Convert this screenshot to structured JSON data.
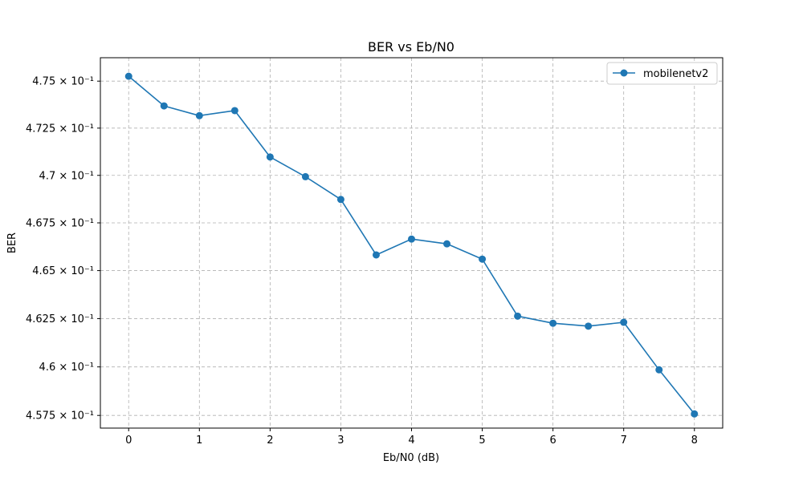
{
  "chart_data": {
    "type": "line",
    "title": "BER vs Eb/N0",
    "xlabel": "Eb/N0 (dB)",
    "ylabel": "BER",
    "xlim": [
      -0.4,
      8.4
    ],
    "ylim": [
      4.5685,
      4.7625
    ],
    "y_scale": "log",
    "grid": true,
    "grid_style": "dashed",
    "legend_position": "top-right",
    "x_ticks": [
      0,
      1,
      2,
      3,
      4,
      5,
      6,
      7,
      8
    ],
    "x_tick_labels": [
      "0",
      "1",
      "2",
      "3",
      "4",
      "5",
      "6",
      "7",
      "8"
    ],
    "y_ticks": [
      4.575,
      4.6,
      4.625,
      4.65,
      4.675,
      4.7,
      4.725,
      4.75
    ],
    "y_tick_labels": [
      "4.575 × 10⁻¹",
      "4.6 × 10⁻¹",
      "4.625 × 10⁻¹",
      "4.65 × 10⁻¹",
      "4.675 × 10⁻¹",
      "4.7 × 10⁻¹",
      "4.725 × 10⁻¹",
      "4.75 × 10⁻¹"
    ],
    "series": [
      {
        "name": "mobilenetv2",
        "color": "#1f77b4",
        "marker": "circle",
        "x": [
          0,
          0.5,
          1,
          1.5,
          2,
          2.5,
          3,
          3.5,
          4,
          4.5,
          5,
          5.5,
          6,
          6.5,
          7,
          7.5,
          8
        ],
        "y": [
          4.7526,
          4.7368,
          4.7316,
          4.7343,
          4.7097,
          4.6993,
          4.6873,
          4.6582,
          4.6665,
          4.664,
          4.656,
          4.6263,
          4.6226,
          4.6211,
          4.6231,
          4.5985,
          4.5758
        ]
      }
    ]
  }
}
